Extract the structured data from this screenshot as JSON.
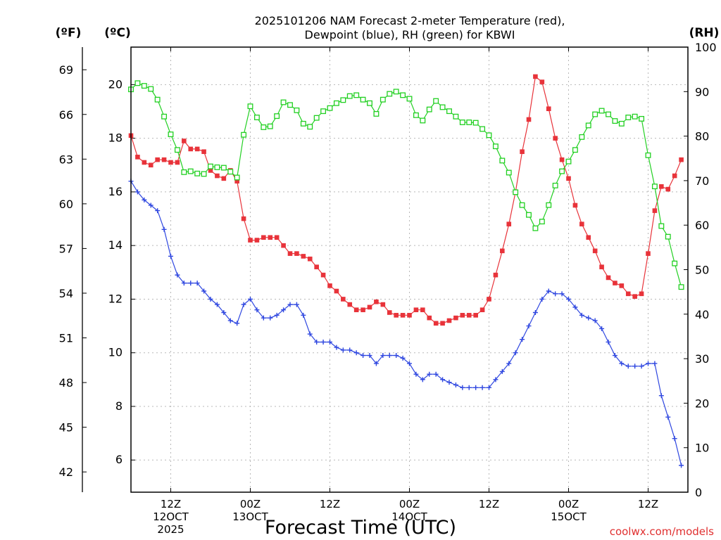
{
  "chart_data": {
    "type": "line",
    "title": [
      "2025101206 NAM Forecast 2-meter Temperature (red),",
      "Dewpoint (blue), RH (green) for KBWI"
    ],
    "xlabel": "Forecast Time (UTC)",
    "credit": "coolwx.com/models",
    "units": {
      "fahrenheit": "(ºF)",
      "celsius": "(ºC)",
      "rh": "(RH)"
    },
    "x_unit": "forecast hour (valid from 2025-10-12 06Z)",
    "xlim": [
      0,
      84
    ],
    "x_ticks": [
      {
        "x": 6,
        "label": [
          "12Z",
          "12OCT",
          "2025"
        ]
      },
      {
        "x": 18,
        "label": [
          "00Z",
          "13OCT"
        ]
      },
      {
        "x": 30,
        "label": [
          "12Z"
        ]
      },
      {
        "x": 42,
        "label": [
          "00Z",
          "14OCT"
        ]
      },
      {
        "x": 54,
        "label": [
          "12Z"
        ]
      },
      {
        "x": 66,
        "label": [
          "00Z",
          "15OCT"
        ]
      },
      {
        "x": 78,
        "label": [
          "12Z"
        ]
      }
    ],
    "y_celsius": {
      "range": [
        4.8,
        21.4
      ],
      "ticks": [
        6,
        8,
        10,
        12,
        14,
        16,
        18,
        20
      ]
    },
    "y_fahrenheit": {
      "ticks": [
        42,
        45,
        48,
        51,
        54,
        57,
        60,
        63,
        66,
        69
      ]
    },
    "y_rh": {
      "range": [
        0,
        100
      ],
      "ticks": [
        0,
        10,
        20,
        30,
        40,
        50,
        60,
        70,
        80,
        90,
        100
      ]
    },
    "grid": true,
    "series": [
      {
        "name": "Temperature",
        "axis": "celsius",
        "color": "#e8333a",
        "marker": "filled-square",
        "points": [
          [
            0,
            18.1
          ],
          [
            1,
            17.3
          ],
          [
            2,
            17.1
          ],
          [
            3,
            17.0
          ],
          [
            4,
            17.2
          ],
          [
            5,
            17.2
          ],
          [
            6,
            17.1
          ],
          [
            7,
            17.1
          ],
          [
            8,
            17.9
          ],
          [
            9,
            17.6
          ],
          [
            10,
            17.6
          ],
          [
            11,
            17.5
          ],
          [
            12,
            16.8
          ],
          [
            13,
            16.6
          ],
          [
            14,
            16.5
          ],
          [
            15,
            16.8
          ],
          [
            16,
            16.4
          ],
          [
            17,
            15.0
          ],
          [
            18,
            14.2
          ],
          [
            19,
            14.2
          ],
          [
            20,
            14.3
          ],
          [
            21,
            14.3
          ],
          [
            22,
            14.3
          ],
          [
            23,
            14.0
          ],
          [
            24,
            13.7
          ],
          [
            25,
            13.7
          ],
          [
            26,
            13.6
          ],
          [
            27,
            13.5
          ],
          [
            28,
            13.2
          ],
          [
            29,
            12.9
          ],
          [
            30,
            12.5
          ],
          [
            31,
            12.3
          ],
          [
            32,
            12.0
          ],
          [
            33,
            11.8
          ],
          [
            34,
            11.6
          ],
          [
            35,
            11.6
          ],
          [
            36,
            11.7
          ],
          [
            37,
            11.9
          ],
          [
            38,
            11.8
          ],
          [
            39,
            11.5
          ],
          [
            40,
            11.4
          ],
          [
            41,
            11.4
          ],
          [
            42,
            11.4
          ],
          [
            43,
            11.6
          ],
          [
            44,
            11.6
          ],
          [
            45,
            11.3
          ],
          [
            46,
            11.1
          ],
          [
            47,
            11.1
          ],
          [
            48,
            11.2
          ],
          [
            49,
            11.3
          ],
          [
            50,
            11.4
          ],
          [
            51,
            11.4
          ],
          [
            52,
            11.4
          ],
          [
            53,
            11.6
          ],
          [
            54,
            12.0
          ],
          [
            55,
            12.9
          ],
          [
            56,
            13.8
          ],
          [
            57,
            14.8
          ],
          [
            58,
            16.0
          ],
          [
            59,
            17.5
          ],
          [
            60,
            18.7
          ],
          [
            61,
            20.3
          ],
          [
            62,
            20.1
          ],
          [
            63,
            19.1
          ],
          [
            64,
            18.0
          ],
          [
            65,
            17.2
          ],
          [
            66,
            16.5
          ],
          [
            67,
            15.5
          ],
          [
            68,
            14.8
          ],
          [
            69,
            14.3
          ],
          [
            70,
            13.8
          ],
          [
            71,
            13.2
          ],
          [
            72,
            12.8
          ],
          [
            73,
            12.6
          ],
          [
            74,
            12.5
          ],
          [
            75,
            12.2
          ],
          [
            76,
            12.1
          ],
          [
            77,
            12.2
          ],
          [
            78,
            13.7
          ],
          [
            79,
            15.3
          ],
          [
            80,
            16.2
          ],
          [
            81,
            16.1
          ],
          [
            82,
            16.6
          ],
          [
            83,
            17.2
          ]
        ]
      },
      {
        "name": "Dewpoint",
        "axis": "celsius",
        "color": "#2f47e0",
        "marker": "plus",
        "points": [
          [
            0,
            16.4
          ],
          [
            1,
            16.0
          ],
          [
            2,
            15.7
          ],
          [
            3,
            15.5
          ],
          [
            4,
            15.3
          ],
          [
            5,
            14.6
          ],
          [
            6,
            13.6
          ],
          [
            7,
            12.9
          ],
          [
            8,
            12.6
          ],
          [
            9,
            12.6
          ],
          [
            10,
            12.6
          ],
          [
            11,
            12.3
          ],
          [
            12,
            12.0
          ],
          [
            13,
            11.8
          ],
          [
            14,
            11.5
          ],
          [
            15,
            11.2
          ],
          [
            16,
            11.1
          ],
          [
            17,
            11.8
          ],
          [
            18,
            12.0
          ],
          [
            19,
            11.6
          ],
          [
            20,
            11.3
          ],
          [
            21,
            11.3
          ],
          [
            22,
            11.4
          ],
          [
            23,
            11.6
          ],
          [
            24,
            11.8
          ],
          [
            25,
            11.8
          ],
          [
            26,
            11.4
          ],
          [
            27,
            10.7
          ],
          [
            28,
            10.4
          ],
          [
            29,
            10.4
          ],
          [
            30,
            10.4
          ],
          [
            31,
            10.2
          ],
          [
            32,
            10.1
          ],
          [
            33,
            10.1
          ],
          [
            34,
            10.0
          ],
          [
            35,
            9.9
          ],
          [
            36,
            9.9
          ],
          [
            37,
            9.6
          ],
          [
            38,
            9.9
          ],
          [
            39,
            9.9
          ],
          [
            40,
            9.9
          ],
          [
            41,
            9.8
          ],
          [
            42,
            9.6
          ],
          [
            43,
            9.2
          ],
          [
            44,
            9.0
          ],
          [
            45,
            9.2
          ],
          [
            46,
            9.2
          ],
          [
            47,
            9.0
          ],
          [
            48,
            8.9
          ],
          [
            49,
            8.8
          ],
          [
            50,
            8.7
          ],
          [
            51,
            8.7
          ],
          [
            52,
            8.7
          ],
          [
            53,
            8.7
          ],
          [
            54,
            8.7
          ],
          [
            55,
            9.0
          ],
          [
            56,
            9.3
          ],
          [
            57,
            9.6
          ],
          [
            58,
            10.0
          ],
          [
            59,
            10.5
          ],
          [
            60,
            11.0
          ],
          [
            61,
            11.5
          ],
          [
            62,
            12.0
          ],
          [
            63,
            12.3
          ],
          [
            64,
            12.2
          ],
          [
            65,
            12.2
          ],
          [
            66,
            12.0
          ],
          [
            67,
            11.7
          ],
          [
            68,
            11.4
          ],
          [
            69,
            11.3
          ],
          [
            70,
            11.2
          ],
          [
            71,
            10.9
          ],
          [
            72,
            10.4
          ],
          [
            73,
            9.9
          ],
          [
            74,
            9.6
          ],
          [
            75,
            9.5
          ],
          [
            76,
            9.5
          ],
          [
            77,
            9.5
          ],
          [
            78,
            9.6
          ],
          [
            79,
            9.6
          ],
          [
            80,
            8.4
          ],
          [
            81,
            7.6
          ],
          [
            82,
            6.8
          ],
          [
            83,
            5.8
          ]
        ]
      },
      {
        "name": "RH",
        "axis": "rh",
        "color": "#22d022",
        "marker": "open-square",
        "points": [
          [
            0,
            90.5
          ],
          [
            1,
            91.9
          ],
          [
            2,
            91.3
          ],
          [
            3,
            90.6
          ],
          [
            4,
            88.2
          ],
          [
            5,
            84.4
          ],
          [
            6,
            80.4
          ],
          [
            7,
            76.9
          ],
          [
            8,
            71.9
          ],
          [
            9,
            72.1
          ],
          [
            10,
            71.6
          ],
          [
            11,
            71.5
          ],
          [
            12,
            73.2
          ],
          [
            13,
            73.0
          ],
          [
            14,
            72.9
          ],
          [
            15,
            72.0
          ],
          [
            16,
            70.7
          ],
          [
            17,
            80.3
          ],
          [
            18,
            86.7
          ],
          [
            19,
            84.2
          ],
          [
            20,
            82.0
          ],
          [
            21,
            82.2
          ],
          [
            22,
            84.5
          ],
          [
            23,
            87.6
          ],
          [
            24,
            87.0
          ],
          [
            25,
            85.8
          ],
          [
            26,
            82.8
          ],
          [
            27,
            82.1
          ],
          [
            28,
            84.1
          ],
          [
            29,
            85.6
          ],
          [
            30,
            86.3
          ],
          [
            31,
            87.4
          ],
          [
            32,
            88.1
          ],
          [
            33,
            89.0
          ],
          [
            34,
            89.2
          ],
          [
            35,
            88.2
          ],
          [
            36,
            87.4
          ],
          [
            37,
            85.0
          ],
          [
            38,
            88.2
          ],
          [
            39,
            89.5
          ],
          [
            40,
            90.0
          ],
          [
            41,
            89.2
          ],
          [
            42,
            88.4
          ],
          [
            43,
            84.7
          ],
          [
            44,
            83.5
          ],
          [
            45,
            86.0
          ],
          [
            46,
            87.9
          ],
          [
            47,
            86.5
          ],
          [
            48,
            85.6
          ],
          [
            49,
            84.4
          ],
          [
            50,
            83.1
          ],
          [
            51,
            83.1
          ],
          [
            52,
            83.0
          ],
          [
            53,
            81.6
          ],
          [
            54,
            80.2
          ],
          [
            55,
            77.7
          ],
          [
            56,
            74.5
          ],
          [
            57,
            71.8
          ],
          [
            58,
            67.4
          ],
          [
            59,
            64.5
          ],
          [
            60,
            62.3
          ],
          [
            61,
            59.3
          ],
          [
            62,
            60.8
          ],
          [
            63,
            64.5
          ],
          [
            64,
            68.9
          ],
          [
            65,
            72.1
          ],
          [
            66,
            74.3
          ],
          [
            67,
            76.9
          ],
          [
            68,
            79.8
          ],
          [
            69,
            82.4
          ],
          [
            70,
            84.9
          ],
          [
            71,
            85.7
          ],
          [
            72,
            84.9
          ],
          [
            73,
            83.4
          ],
          [
            74,
            82.8
          ],
          [
            75,
            84.2
          ],
          [
            76,
            84.4
          ],
          [
            77,
            83.9
          ],
          [
            78,
            75.7
          ],
          [
            79,
            68.7
          ],
          [
            80,
            59.8
          ],
          [
            81,
            57.4
          ],
          [
            82,
            51.4
          ],
          [
            83,
            46.1
          ]
        ]
      }
    ]
  }
}
